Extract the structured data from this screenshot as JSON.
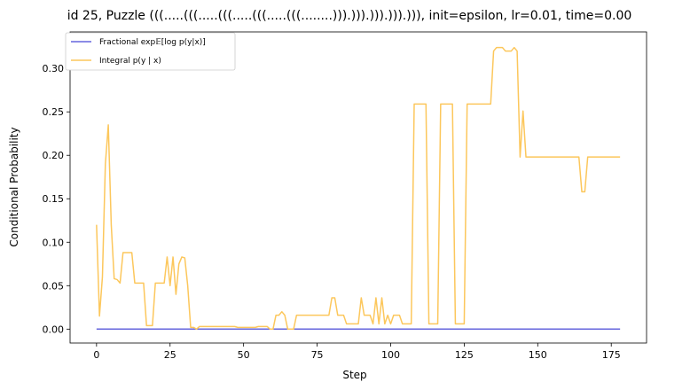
{
  "chart_data": {
    "type": "line",
    "title": "id 25, Puzzle (((.....(((.....(((.....(((.....(((........))).))).))).))).))), init=epsilon, lr=0.01, time=0.00",
    "xlabel": "Step",
    "ylabel": "Conditional Probability",
    "xlim": [
      -9,
      187
    ],
    "ylim": [
      -0.016,
      0.342
    ],
    "xticks": [
      0,
      25,
      50,
      75,
      100,
      125,
      150,
      175
    ],
    "yticks": [
      0.0,
      0.05,
      0.1,
      0.15,
      0.2,
      0.25,
      0.3
    ],
    "ytick_labels": [
      "0.00",
      "0.05",
      "0.10",
      "0.15",
      "0.20",
      "0.25",
      "0.30"
    ],
    "legend_position": "top-left",
    "grid": false,
    "series": [
      {
        "name": "Fractional exp𝔼[log p(y|x)]",
        "color": "#6666dd",
        "points": [
          [
            0,
            0.0
          ],
          [
            178,
            0.0
          ]
        ]
      },
      {
        "name": "Integral p(y | x)",
        "color": "#fcc75c",
        "points": [
          [
            0,
            0.12
          ],
          [
            1,
            0.015
          ],
          [
            2,
            0.06
          ],
          [
            3,
            0.19
          ],
          [
            4,
            0.235
          ],
          [
            5,
            0.12
          ],
          [
            6,
            0.058
          ],
          [
            7,
            0.057
          ],
          [
            8,
            0.053
          ],
          [
            9,
            0.088
          ],
          [
            10,
            0.088
          ],
          [
            12,
            0.088
          ],
          [
            13,
            0.053
          ],
          [
            16,
            0.053
          ],
          [
            17,
            0.004
          ],
          [
            19,
            0.004
          ],
          [
            20,
            0.053
          ],
          [
            23,
            0.053
          ],
          [
            24,
            0.083
          ],
          [
            25,
            0.05
          ],
          [
            26,
            0.083
          ],
          [
            27,
            0.04
          ],
          [
            28,
            0.075
          ],
          [
            29,
            0.083
          ],
          [
            30,
            0.082
          ],
          [
            31,
            0.05
          ],
          [
            32,
            0.002
          ],
          [
            33,
            0.002
          ],
          [
            34,
            0.0
          ],
          [
            35,
            0.003
          ],
          [
            47,
            0.003
          ],
          [
            48,
            0.002
          ],
          [
            54,
            0.002
          ],
          [
            55,
            0.003
          ],
          [
            58,
            0.003
          ],
          [
            59,
            0.0
          ],
          [
            60,
            0.0
          ],
          [
            61,
            0.016
          ],
          [
            62,
            0.016
          ],
          [
            63,
            0.02
          ],
          [
            64,
            0.016
          ],
          [
            65,
            0.0
          ],
          [
            67,
            0.0
          ],
          [
            68,
            0.016
          ],
          [
            79,
            0.016
          ],
          [
            80,
            0.036
          ],
          [
            81,
            0.036
          ],
          [
            82,
            0.016
          ],
          [
            84,
            0.016
          ],
          [
            85,
            0.006
          ],
          [
            89,
            0.006
          ],
          [
            90,
            0.036
          ],
          [
            91,
            0.016
          ],
          [
            93,
            0.016
          ],
          [
            94,
            0.006
          ],
          [
            95,
            0.036
          ],
          [
            96,
            0.006
          ],
          [
            97,
            0.036
          ],
          [
            98,
            0.006
          ],
          [
            99,
            0.016
          ],
          [
            100,
            0.006
          ],
          [
            101,
            0.016
          ],
          [
            103,
            0.016
          ],
          [
            104,
            0.006
          ],
          [
            107,
            0.006
          ],
          [
            108,
            0.259
          ],
          [
            112,
            0.259
          ],
          [
            113,
            0.006
          ],
          [
            116,
            0.006
          ],
          [
            117,
            0.259
          ],
          [
            121,
            0.259
          ],
          [
            122,
            0.006
          ],
          [
            125,
            0.006
          ],
          [
            126,
            0.259
          ],
          [
            134,
            0.259
          ],
          [
            135,
            0.32
          ],
          [
            136,
            0.324
          ],
          [
            138,
            0.324
          ],
          [
            139,
            0.32
          ],
          [
            141,
            0.32
          ],
          [
            142,
            0.324
          ],
          [
            143,
            0.32
          ],
          [
            144,
            0.198
          ],
          [
            145,
            0.251
          ],
          [
            146,
            0.198
          ],
          [
            164,
            0.198
          ],
          [
            165,
            0.158
          ],
          [
            166,
            0.158
          ],
          [
            167,
            0.198
          ],
          [
            178,
            0.198
          ]
        ]
      }
    ]
  }
}
